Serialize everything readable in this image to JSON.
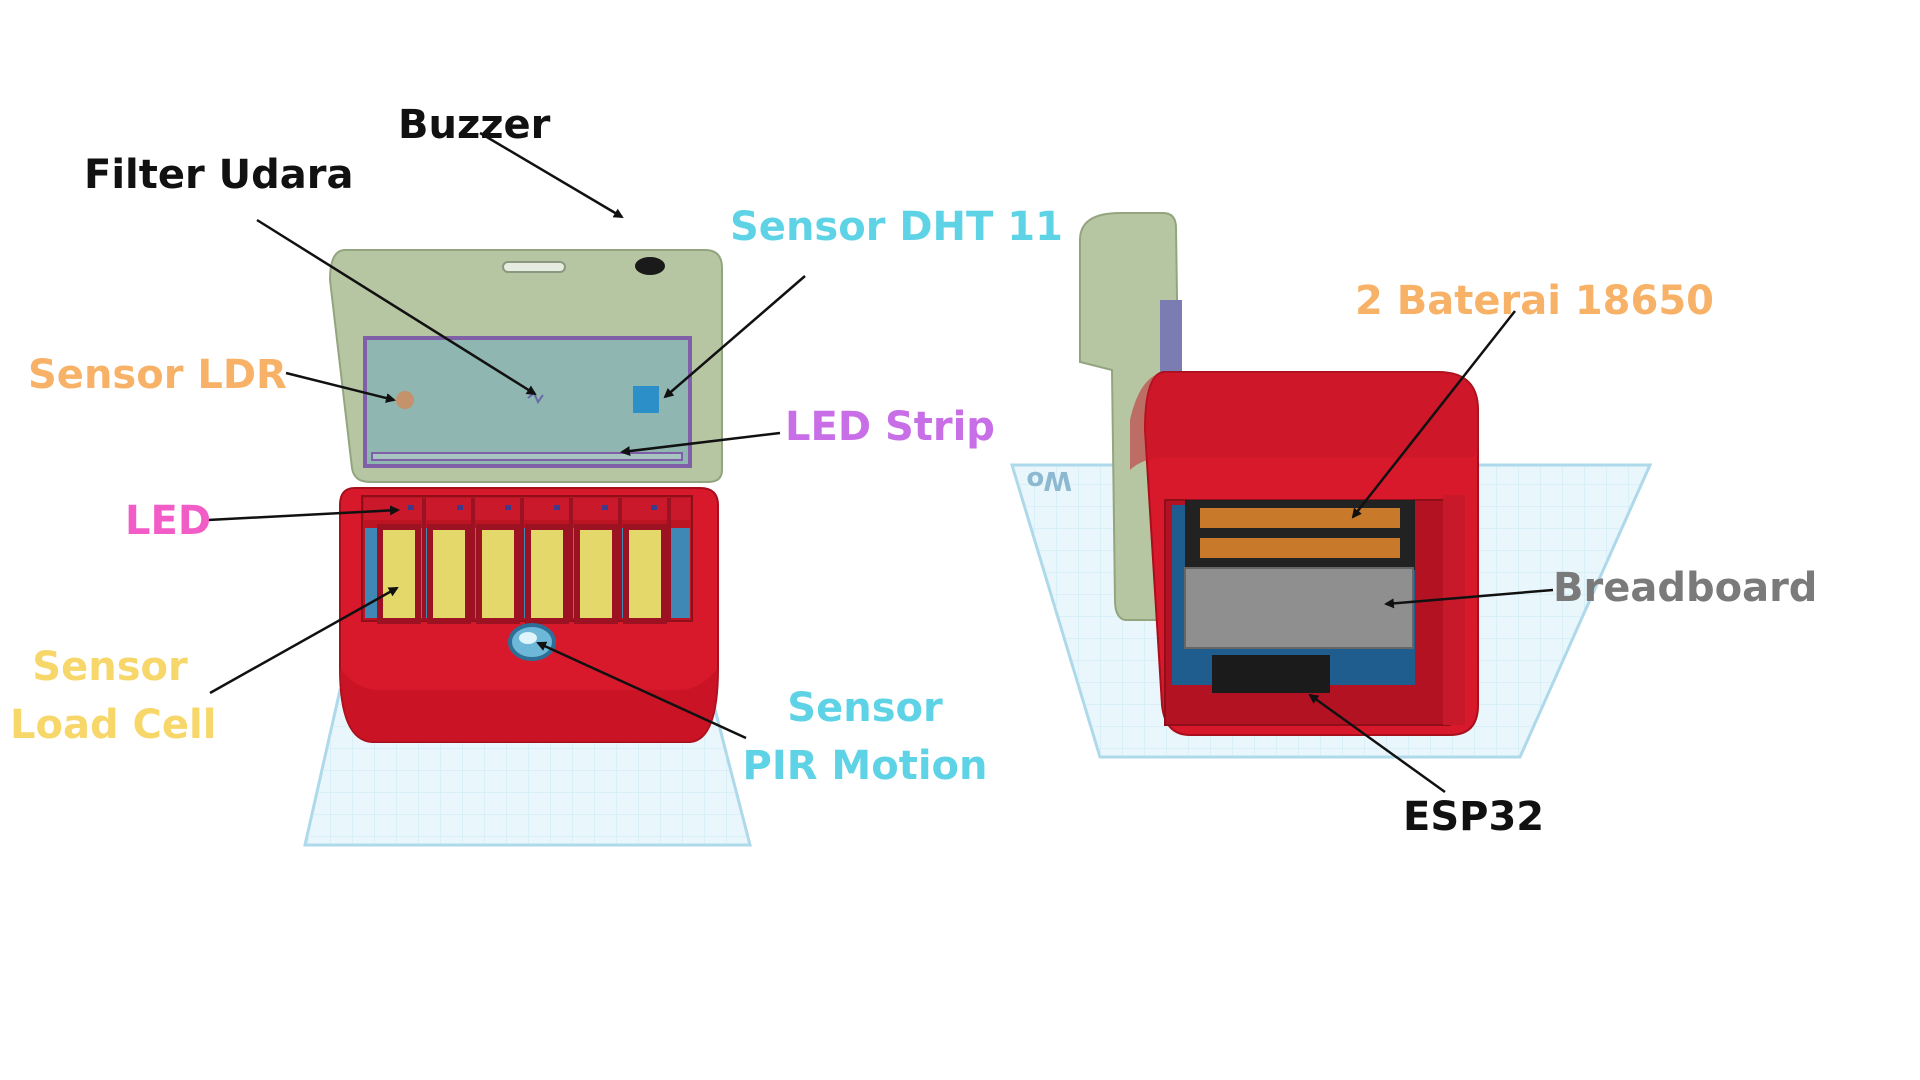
{
  "labels": {
    "buzzer": "Buzzer",
    "filter_udara": "Filter Udara",
    "sensor_dht11": "Sensor DHT 11",
    "sensor_ldr": "Sensor LDR",
    "led_strip": "LED Strip",
    "led": "LED",
    "sensor_load_cell_line1": "Sensor",
    "sensor_load_cell_line2": "Load Cell",
    "sensor_pir_line1": "Sensor",
    "sensor_pir_line2": "PIR Motion",
    "baterai": "2 Baterai 18650",
    "breadboard": "Breadboard",
    "esp32": "ESP32",
    "workplane_text": "Wo"
  },
  "colors": {
    "black_label": "#111111",
    "cyan_label": "#5fd3e6",
    "orange_label": "#f7b267",
    "purple_label": "#c86ee6",
    "pink_label": "#f25cc6",
    "yellow_label": "#f7d76a",
    "gray_label": "#7a7a7a",
    "case_red": "#d8182b",
    "lid_green": "#b7c6a2",
    "workplane": "#e6f4fb"
  }
}
